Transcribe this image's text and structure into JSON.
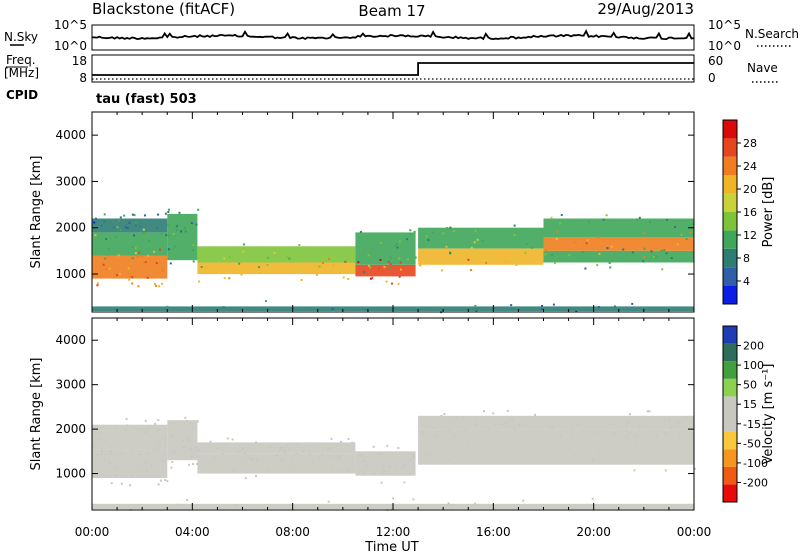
{
  "header": {
    "station": "Blackstone (fitACF)",
    "beam": "Beam 17",
    "date": "29/Aug/2013"
  },
  "aux_panels": {
    "nsky_label": "N.Sky",
    "nsearch_label": "N.Search",
    "freq_label_top": "Freq.",
    "freq_label_unit": "[MHz]",
    "nave_label": "Nave",
    "cpid_label": "CPID",
    "cpid_value": "tau (fast) 503",
    "nsky_ticks": [
      "10^5",
      "10^0"
    ],
    "nsearch_ticks": [
      "10^5",
      "10^0"
    ],
    "freq_ticks": [
      "18",
      "8"
    ],
    "nave_ticks": [
      "60",
      "0"
    ]
  },
  "time_axis": {
    "label": "Time UT",
    "ticks": [
      "00:00",
      "04:00",
      "08:00",
      "12:00",
      "16:00",
      "20:00",
      "00:00"
    ]
  },
  "colors": {
    "power": [
      "#0a1ee6",
      "#2f5fa8",
      "#2e7d73",
      "#3fa65a",
      "#7ec43a",
      "#c8d23a",
      "#f0b428",
      "#f07d1e",
      "#e6461e",
      "#d80a0a"
    ],
    "velocity": [
      "#e60a0a",
      "#f05a14",
      "#f7961e",
      "#fac83c",
      "#c8c8c0",
      "#c8c8c0",
      "#8cd250",
      "#3fa03c",
      "#2d6e5a",
      "#1e3cb4"
    ]
  },
  "chart_data": [
    {
      "type": "heatmap",
      "name": "power",
      "ylabel": "Slant Range [km]",
      "ylim": [
        180,
        4500
      ],
      "yticks": [
        1000,
        2000,
        3000,
        4000
      ],
      "xlim": [
        0,
        24
      ],
      "colorbar": {
        "label": "Power [dB]",
        "ticks": [
          "4",
          "8",
          "12",
          "16",
          "20",
          "24",
          "28"
        ],
        "range": [
          0,
          32
        ]
      },
      "bands": [
        {
          "start": 0.0,
          "end": 3.0,
          "lo": 900,
          "hi": 1400,
          "value": 24
        },
        {
          "start": 0.0,
          "end": 3.0,
          "lo": 1400,
          "hi": 1900,
          "value": 12
        },
        {
          "start": 0.0,
          "end": 3.0,
          "lo": 1900,
          "hi": 2200,
          "value": 8
        },
        {
          "start": 3.0,
          "end": 4.2,
          "lo": 1300,
          "hi": 2300,
          "value": 10
        },
        {
          "start": 4.2,
          "end": 10.5,
          "lo": 1000,
          "hi": 1250,
          "value": 20
        },
        {
          "start": 4.2,
          "end": 10.5,
          "lo": 1250,
          "hi": 1600,
          "value": 14
        },
        {
          "start": 10.5,
          "end": 12.9,
          "lo": 950,
          "hi": 1200,
          "value": 26
        },
        {
          "start": 10.5,
          "end": 12.9,
          "lo": 1200,
          "hi": 1900,
          "value": 12
        },
        {
          "start": 13.0,
          "end": 18.0,
          "lo": 1200,
          "hi": 1550,
          "value": 22
        },
        {
          "start": 13.0,
          "end": 18.0,
          "lo": 1550,
          "hi": 2000,
          "value": 12
        },
        {
          "start": 18.0,
          "end": 24.0,
          "lo": 1500,
          "hi": 1800,
          "value": 24
        },
        {
          "start": 18.0,
          "end": 24.0,
          "lo": 1800,
          "hi": 2200,
          "value": 12
        },
        {
          "start": 18.0,
          "end": 24.0,
          "lo": 1250,
          "hi": 1500,
          "value": 10
        },
        {
          "start": 0.0,
          "end": 24.0,
          "lo": 200,
          "hi": 300,
          "value": 8
        }
      ]
    },
    {
      "type": "heatmap",
      "name": "velocity",
      "ylabel": "Slant Range [km]",
      "ylim": [
        180,
        4500
      ],
      "yticks": [
        1000,
        2000,
        3000,
        4000
      ],
      "xlim": [
        0,
        24
      ],
      "colorbar": {
        "label": "Velocity [m s⁻¹]",
        "ticks": [
          "-200",
          "-100",
          "-50",
          "-15",
          "15",
          "50",
          "100",
          "200"
        ],
        "range": [
          -250,
          250
        ]
      },
      "bands": [
        {
          "start": 0.0,
          "end": 3.0,
          "lo": 900,
          "hi": 1550,
          "value": 0
        },
        {
          "start": 0.0,
          "end": 3.0,
          "lo": 1550,
          "hi": 2100,
          "value": 30
        },
        {
          "start": 3.0,
          "end": 4.2,
          "lo": 1300,
          "hi": 2200,
          "value": -30
        },
        {
          "start": 4.2,
          "end": 10.5,
          "lo": 1000,
          "hi": 1450,
          "value": 0
        },
        {
          "start": 4.2,
          "end": 10.5,
          "lo": 1450,
          "hi": 1700,
          "value": 40
        },
        {
          "start": 10.5,
          "end": 12.9,
          "lo": 950,
          "hi": 1500,
          "value": 0
        },
        {
          "start": 13.0,
          "end": 24.0,
          "lo": 1200,
          "hi": 2000,
          "value": 0
        },
        {
          "start": 13.0,
          "end": 24.0,
          "lo": 2000,
          "hi": 2300,
          "value": 40
        },
        {
          "start": 0.0,
          "end": 24.0,
          "lo": 200,
          "hi": 320,
          "value": -40
        }
      ]
    }
  ]
}
